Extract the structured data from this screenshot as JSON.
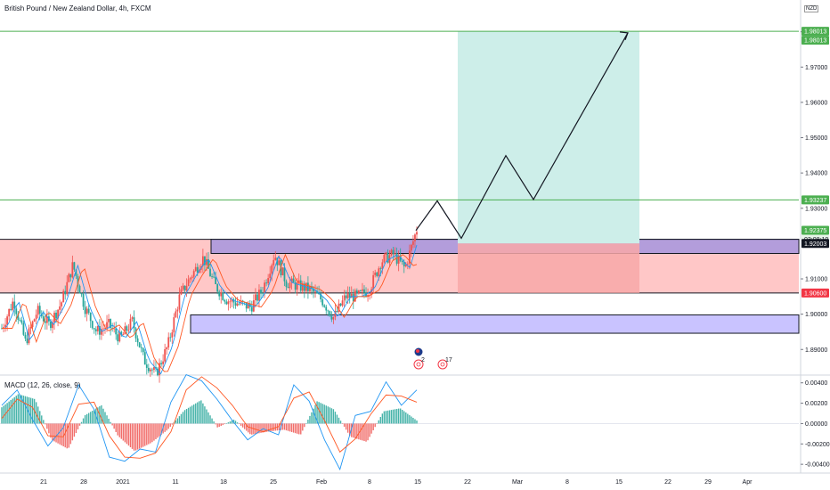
{
  "header": {
    "symbol_title": "British Pound / New Zealand Dollar, 4h, FXCM",
    "currency": "NZD"
  },
  "macd": {
    "title": "MACD (12, 26, close, 9)"
  },
  "colors": {
    "green_line": "#4caf50",
    "resistance_zone": "#ffc7c7",
    "support_zone": "#c9c3ff",
    "purple_zone": "#b39ddb",
    "target_zone": "#cdeee9",
    "stop_zone": "#f8a8a8",
    "bull_candle": "#ef5350",
    "bear_candle": "#26a69a",
    "macd_line": "#2196f3",
    "signal_line": "#ff5722"
  },
  "chart_data": [
    {
      "type": "candlestick",
      "title": "British Pound / New Zealand Dollar, 4h, FXCM",
      "y_ticks": [
        "1.98000",
        "1.97000",
        "1.96000",
        "1.95000",
        "1.94000",
        "1.93000",
        "1.91000",
        "1.90000",
        "1.89000"
      ],
      "x_ticks": [
        "21",
        "28",
        "2021",
        "11",
        "18",
        "25",
        "Feb",
        "8",
        "15",
        "22",
        "Mar",
        "8",
        "15",
        "22",
        "29",
        "Apr"
      ],
      "ylim": [
        1.883,
        1.989
      ],
      "price_labels": [
        {
          "text": "1.98013",
          "value": 1.98013,
          "style": "green"
        },
        {
          "text": "1.98013",
          "value": 1.98013,
          "style": "green",
          "stack": 1
        },
        {
          "text": "1.93237",
          "value": 1.93237,
          "style": "green"
        },
        {
          "text": "1.92375",
          "value": 1.92375,
          "style": "green"
        },
        {
          "text": "03:08:10",
          "value": 1.92375,
          "style": "light",
          "stack": 1
        },
        {
          "text": "1.92003",
          "value": 1.92003,
          "style": "dark"
        },
        {
          "text": "1.90600",
          "value": 1.906,
          "style": "red"
        }
      ],
      "horizontal_lines": [
        1.98013,
        1.93237
      ],
      "zones": {
        "resistance": [
          1.906,
          1.9212
        ],
        "purple": [
          1.9172,
          1.9212
        ],
        "support": [
          1.8946,
          1.8998
        ],
        "target": [
          1.92003,
          1.98013
        ],
        "stop": [
          1.906,
          1.92003
        ]
      },
      "projection_path": [
        [
          1.9237,
          1.9263
        ],
        [
          1.9321,
          1.9263
        ],
        [
          1.9215,
          1.9263
        ],
        [
          1.9449,
          1.9263
        ],
        [
          1.9325,
          1.9263
        ],
        [
          1.9797,
          1.9263
        ]
      ],
      "price_path": [
        1.896,
        1.904,
        1.892,
        1.901,
        1.897,
        1.903,
        1.914,
        1.902,
        1.895,
        1.897,
        1.893,
        1.898,
        1.887,
        1.883,
        1.891,
        1.905,
        1.911,
        1.916,
        1.908,
        1.904,
        1.903,
        1.902,
        1.907,
        1.917,
        1.909,
        1.908,
        1.907,
        1.904,
        1.899,
        1.905,
        1.905,
        1.907,
        1.915,
        1.917,
        1.913,
        1.924
      ],
      "events": [
        {
          "label": "",
          "kind": "flag"
        },
        {
          "label": "2",
          "kind": "earnings"
        },
        {
          "label": "17",
          "kind": "earnings"
        }
      ]
    },
    {
      "type": "macd",
      "title": "MACD (12, 26, close, 9)",
      "y_ticks": [
        "0.00400",
        "0.00200",
        "0.00000",
        "-0.00200",
        "-0.00400"
      ],
      "ylim": [
        -0.0046,
        0.0045
      ],
      "histogram": [
        0.0016,
        0.0029,
        0.0024,
        -0.0016,
        -0.0025,
        0.0008,
        0.0018,
        -0.0012,
        -0.0027,
        -0.0019,
        -0.0006,
        0.0013,
        0.0023,
        -0.0004,
        0.0004,
        -0.0011,
        -0.0008,
        -0.0006,
        -0.0011,
        0.0022,
        0.0014,
        -0.0013,
        -0.0018,
        0.0012,
        0.0015,
        0.0003
      ],
      "macd": [
        0.0018,
        0.0033,
        0.0004,
        -0.0022,
        -0.0004,
        0.0038,
        0.0014,
        -0.0033,
        -0.0037,
        -0.0025,
        -0.0028,
        0.0021,
        0.0048,
        0.0042,
        0.0024,
        0.0003,
        -0.0016,
        -0.0005,
        -0.0011,
        0.0038,
        0.0022,
        -0.0016,
        -0.0045,
        0.0008,
        0.0012,
        0.0041,
        0.0018,
        0.0033
      ],
      "signal": [
        0.0005,
        0.0024,
        0.0016,
        -0.0012,
        -0.0013,
        0.0019,
        0.0021,
        -0.0012,
        -0.0033,
        -0.0034,
        -0.0029,
        -0.0008,
        0.0033,
        0.0046,
        0.0035,
        0.0018,
        -0.0003,
        -0.0008,
        -0.0003,
        0.0025,
        0.0031,
        0.0003,
        -0.0028,
        -0.0015,
        0.0009,
        0.0028,
        0.0027,
        0.0021
      ]
    }
  ]
}
